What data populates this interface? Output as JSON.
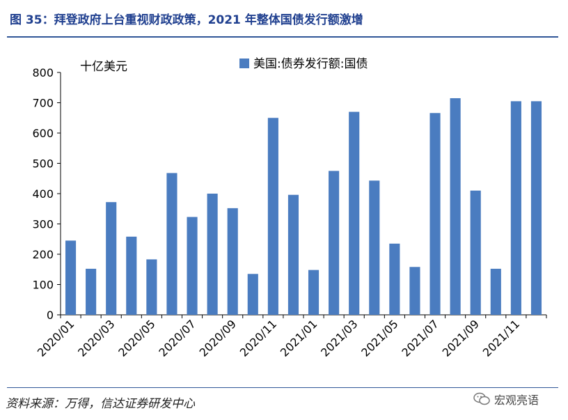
{
  "header": {
    "title": "图 35：拜登政府上台重视财政政策，2021 年整体国债发行额激增"
  },
  "footer": {
    "source": "资料来源：万得，信达证券研发中心",
    "watermark": "宏观亮语"
  },
  "colors": {
    "bar": "#4a7cc0",
    "title": "#1f3f8f",
    "rule": "#2f5597"
  },
  "chart_data": {
    "type": "bar",
    "unit_label": "十亿美元",
    "legend_position": "top-right",
    "ylim": [
      0,
      800
    ],
    "yticks": [
      0,
      100,
      200,
      300,
      400,
      500,
      600,
      700,
      800
    ],
    "grid": false,
    "categories": [
      "2020/01",
      "2020/02",
      "2020/03",
      "2020/04",
      "2020/05",
      "2020/06",
      "2020/07",
      "2020/08",
      "2020/09",
      "2020/10",
      "2020/11",
      "2020/12",
      "2021/01",
      "2021/02",
      "2021/03",
      "2021/04",
      "2021/05",
      "2021/06",
      "2021/07",
      "2021/08",
      "2021/09",
      "2021/10",
      "2021/11",
      "2021/12"
    ],
    "xtick_labels": [
      "2020/01",
      "2020/03",
      "2020/05",
      "2020/07",
      "2020/09",
      "2020/11",
      "2021/01",
      "2021/03",
      "2021/05",
      "2021/07",
      "2021/09",
      "2021/11"
    ],
    "series": [
      {
        "name": "美国:债券发行额:国债",
        "values": [
          245,
          152,
          372,
          258,
          183,
          468,
          323,
          400,
          352,
          135,
          650,
          396,
          148,
          475,
          670,
          443,
          235,
          158,
          666,
          715,
          410,
          152,
          705,
          705
        ]
      }
    ]
  }
}
